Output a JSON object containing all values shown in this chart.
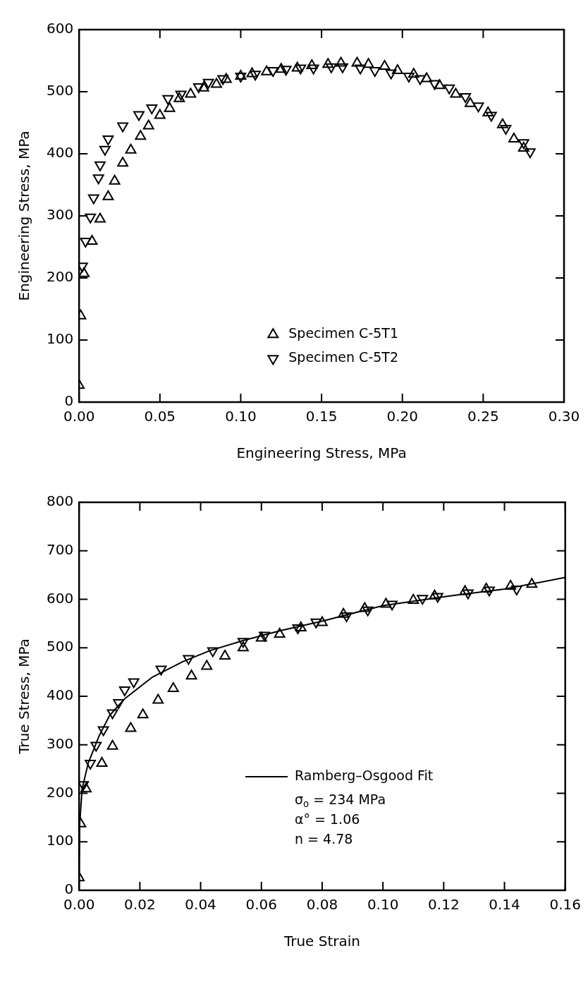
{
  "chart_data": [
    {
      "type": "scatter",
      "xlabel": "Engineering Stress, MPa",
      "ylabel": "Engineering Stress, MPa",
      "legend": "bottom right",
      "grid": false,
      "xlim": [
        0,
        0.3
      ],
      "xticks": [
        {
          "value": 0,
          "label": "0.00"
        },
        {
          "value": 0.05,
          "label": "0.05"
        },
        {
          "value": 0.1,
          "label": "0.10"
        },
        {
          "value": 0.15,
          "label": "0.15"
        },
        {
          "value": 0.2,
          "label": "0.20"
        },
        {
          "value": 0.25,
          "label": "0.25"
        },
        {
          "value": 0.3,
          "label": "0.30"
        }
      ],
      "ylim": [
        0,
        600
      ],
      "yticks": [
        0,
        100,
        200,
        300,
        400,
        500,
        600
      ],
      "series": [
        {
          "name": "Specimen C-5T1",
          "color": "#000000",
          "marker": "triangle",
          "x": [
            0,
            0.001,
            0.003,
            0.008,
            0.013,
            0.018,
            0.022,
            0.027,
            0.032,
            0.038,
            0.043,
            0.05,
            0.056,
            0.062,
            0.069,
            0.077,
            0.085,
            0.091,
            0.1,
            0.107,
            0.116,
            0.125,
            0.135,
            0.144,
            0.154,
            0.162,
            0.172,
            0.179,
            0.189,
            0.197,
            0.207,
            0.215,
            0.223,
            0.233,
            0.242,
            0.253,
            0.262,
            0.269,
            0.275
          ],
          "values": [
            27,
            139,
            207,
            259,
            295,
            331,
            356,
            385,
            406,
            428,
            445,
            462,
            473,
            489,
            496,
            506,
            512,
            520,
            525,
            529,
            532,
            536,
            538,
            542,
            544,
            546,
            546,
            544,
            541,
            534,
            528,
            521,
            510,
            496,
            481,
            466,
            447,
            424,
            409
          ]
        },
        {
          "name": "Specimen C-5T2",
          "color": "#000000",
          "marker": "triangle-down",
          "x": [
            0.002,
            0.004,
            0.007,
            0.009,
            0.012,
            0.013,
            0.016,
            0.018,
            0.027,
            0.037,
            0.045,
            0.055,
            0.063,
            0.074,
            0.08,
            0.089,
            0.1,
            0.109,
            0.12,
            0.128,
            0.137,
            0.145,
            0.156,
            0.163,
            0.174,
            0.183,
            0.193,
            0.204,
            0.211,
            0.22,
            0.229,
            0.239,
            0.247,
            0.255,
            0.264,
            0.275,
            0.279
          ],
          "values": [
            219,
            259,
            298,
            329,
            361,
            382,
            407,
            424,
            445,
            463,
            474,
            489,
            496,
            508,
            515,
            521,
            525,
            528,
            534,
            536,
            538,
            538,
            540,
            540,
            538,
            534,
            530,
            525,
            521,
            513,
            506,
            492,
            477,
            462,
            441,
            418,
            403
          ]
        }
      ]
    },
    {
      "type": "scatter",
      "xlabel": "True Strain",
      "ylabel": "True Stress, MPa",
      "legend": "bottom right",
      "grid": false,
      "xlim": [
        0,
        0.16
      ],
      "xticks": [
        {
          "value": 0,
          "label": "0.00"
        },
        {
          "value": 0.02,
          "label": "0.02"
        },
        {
          "value": 0.04,
          "label": "0.04"
        },
        {
          "value": 0.06,
          "label": "0.06"
        },
        {
          "value": 0.08,
          "label": "0.08"
        },
        {
          "value": 0.1,
          "label": "0.10"
        },
        {
          "value": 0.12,
          "label": "0.12"
        },
        {
          "value": 0.14,
          "label": "0.14"
        },
        {
          "value": 0.16,
          "label": "0.16"
        }
      ],
      "ylim": [
        0,
        800
      ],
      "yticks": [
        0,
        100,
        200,
        300,
        400,
        500,
        600,
        700,
        800
      ],
      "annotations": [
        "σ$_{o}$ = 234 MPa",
        "α° = 1.06",
        "n = 4.78"
      ],
      "series": [
        {
          "color": "#000000",
          "marker": "triangle",
          "x": [
            0,
            0.0005,
            0.0023,
            0.0075,
            0.011,
            0.017,
            0.021,
            0.026,
            0.031,
            0.037,
            0.042,
            0.048,
            0.054,
            0.06,
            0.066,
            0.073,
            0.08,
            0.087,
            0.094,
            0.101,
            0.11,
            0.117,
            0.127,
            0.134,
            0.142,
            0.149
          ],
          "values": [
            26,
            137,
            209,
            262,
            297,
            334,
            362,
            392,
            416,
            442,
            462,
            483,
            500,
            520,
            528,
            541,
            552,
            569,
            581,
            590,
            598,
            607,
            616,
            621,
            627,
            631
          ]
        },
        {
          "color": "#000000",
          "marker": "triangle-down",
          "x": [
            0.0014,
            0.0037,
            0.0056,
            0.008,
            0.011,
            0.013,
            0.015,
            0.018,
            0.027,
            0.036,
            0.044,
            0.054,
            0.061,
            0.072,
            0.078,
            0.088,
            0.095,
            0.103,
            0.113,
            0.118,
            0.128,
            0.135,
            0.144
          ],
          "values": [
            218,
            262,
            299,
            331,
            366,
            387,
            413,
            430,
            456,
            478,
            494,
            513,
            526,
            541,
            553,
            566,
            578,
            590,
            602,
            606,
            613,
            619,
            621
          ]
        },
        {
          "name": "Ramberg–Osgood Fit",
          "type": "line",
          "color": "#000000",
          "marker": "none",
          "line_style": "solid",
          "x": [
            0,
            0.0002,
            0.001,
            0.003,
            0.0065,
            0.01,
            0.015,
            0.024,
            0.034,
            0.043,
            0.054,
            0.066,
            0.08,
            0.1,
            0.122,
            0.14,
            0.16
          ],
          "values": [
            0,
            137,
            209,
            262,
            317,
            360,
            395,
            439,
            471,
            494,
            515,
            535,
            555,
            587,
            607,
            621,
            645
          ]
        }
      ]
    }
  ]
}
